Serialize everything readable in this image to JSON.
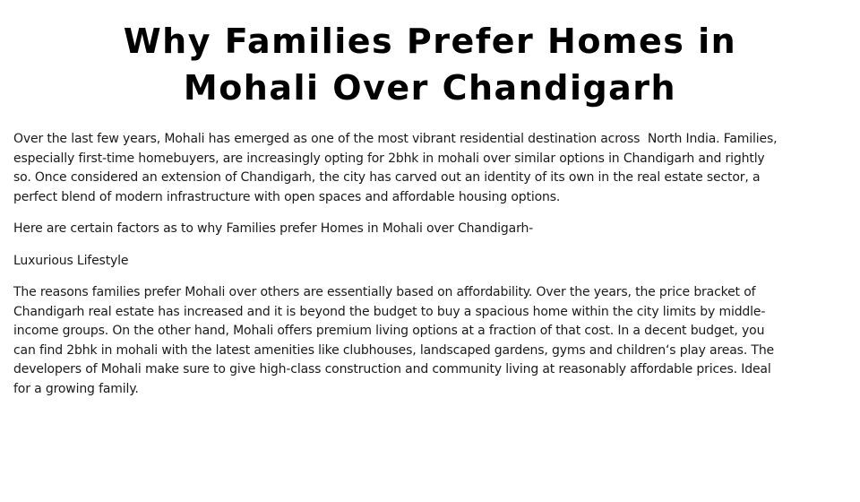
{
  "page": {
    "background_color": "#ffffff",
    "title_color": "#000000",
    "body_text_color": "#1a1a1a"
  },
  "article": {
    "title_lines": [
      "Why Families Prefer Homes in",
      "Mohali Over Chandigarh"
    ],
    "paragraphs": [
      {
        "id": "intro",
        "lines": [
          "Over the last few years, Mohali has emerged as one of the most vibrant residential destination across  North India. Families,",
          "especially first-time homebuyers, are increasingly opting for 2bhk in mohali over similar options in Chandigarh and rightly",
          "so. Once considered an extension of Chandigarh, the city has carved out an identity of its own in the real estate sector, a",
          "perfect blend of modern infrastructure with open spaces and affordable housing options."
        ]
      },
      {
        "id": "factors-lead",
        "lines": [
          "Here are certain factors as to why Families prefer Homes in Mohali over Chandigarh-"
        ]
      },
      {
        "id": "section-heading",
        "lines": [
          "Luxurious Lifestyle"
        ]
      },
      {
        "id": "affordability",
        "lines": [
          "The reasons families prefer Mohali over others are essentially based on affordability. Over the years, the price bracket of",
          "Chandigarh real estate has increased and it is beyond the budget to buy a spacious home within the city limits by middle-",
          "income groups. On the other hand, Mohali offers premium living options at a fraction of that cost. In a decent budget, you",
          "can find 2bhk in mohali with the latest amenities like clubhouses, landscaped gardens, gyms and children‘s play areas. The",
          "developers of Mohali make sure to give high-class construction and community living at reasonably affordable prices. Ideal",
          "for a growing family."
        ]
      }
    ]
  }
}
